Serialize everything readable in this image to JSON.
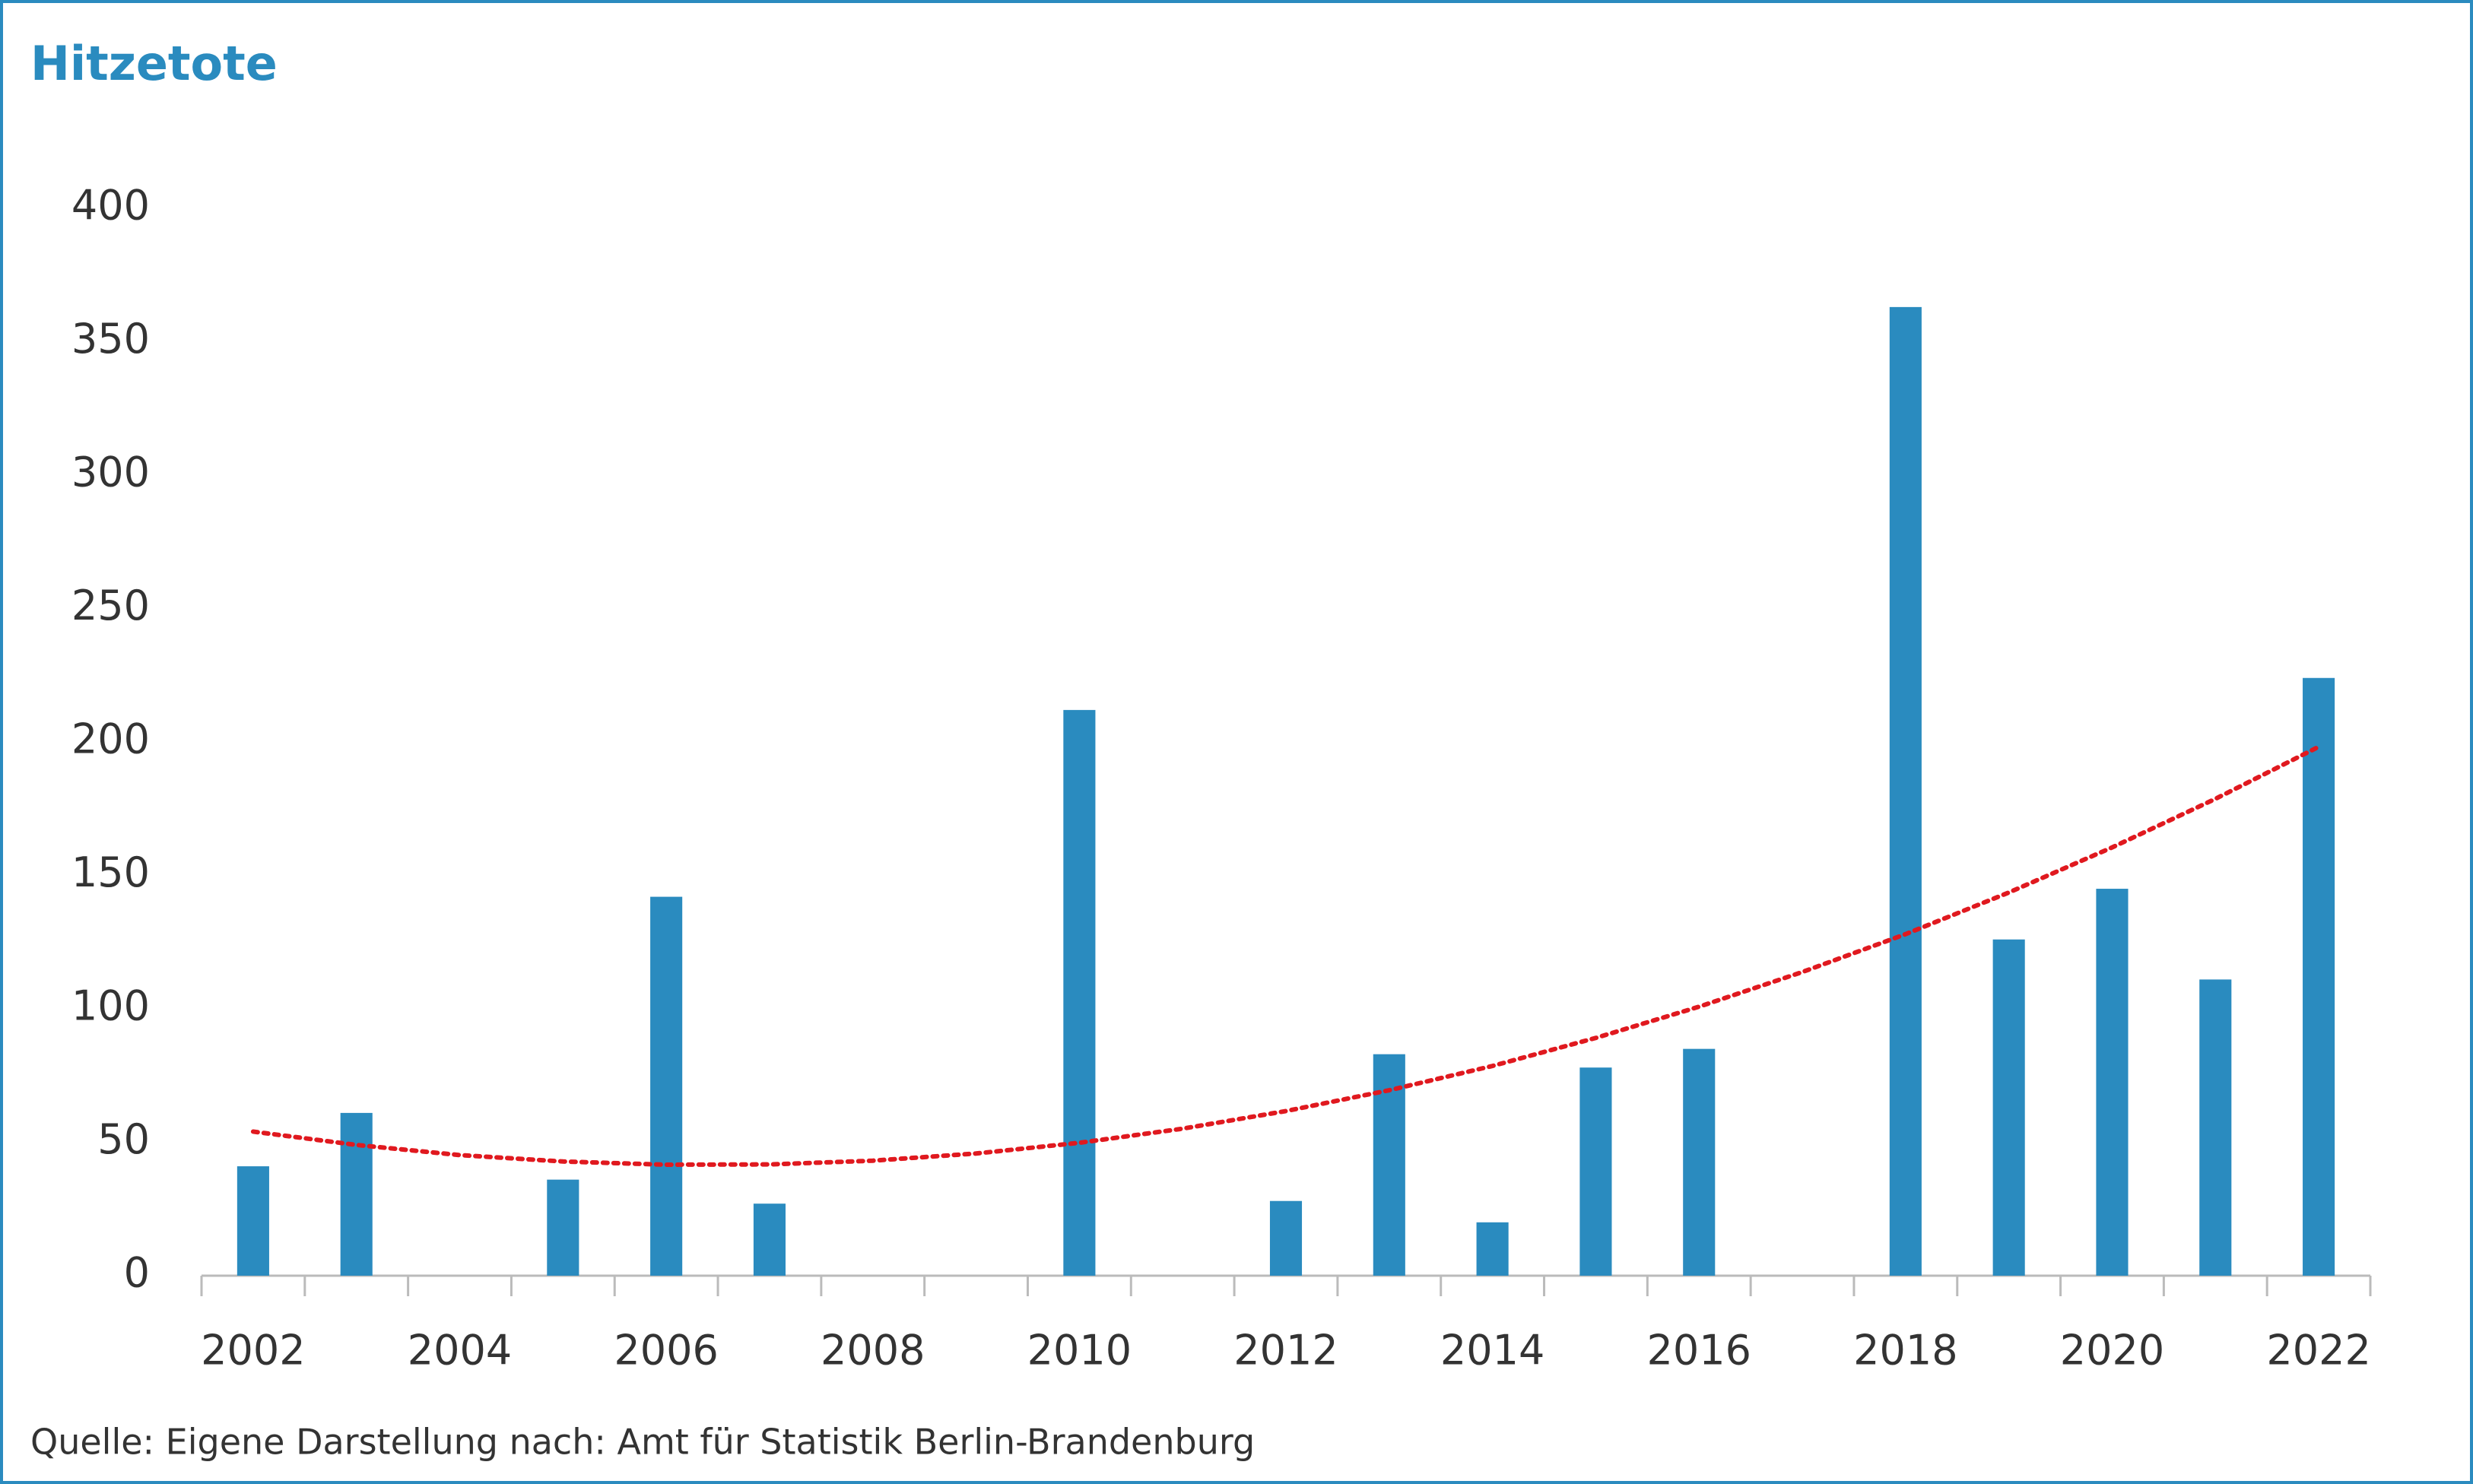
{
  "chart_data": {
    "type": "bar",
    "title": "Hitzetote",
    "source": "Quelle: Eigene Darstellung nach: Amt für Statistik Berlin-Brandenburg",
    "categories": [
      "2002",
      null,
      "2004",
      null,
      "2006",
      null,
      "2008",
      null,
      "2010",
      null,
      "2012",
      null,
      "2014",
      null,
      "2016",
      null,
      "2018",
      null,
      "2020",
      null,
      "2022"
    ],
    "values": [
      41,
      61,
      0,
      36,
      142,
      27,
      0,
      0,
      212,
      0,
      28,
      83,
      20,
      78,
      85,
      0,
      363,
      126,
      145,
      111,
      224
    ],
    "color": "#2a8bbf",
    "trendline": {
      "color": "#e0191f",
      "style": "dotted",
      "values": [
        54,
        49,
        45.2,
        42.8,
        41.6,
        41.7,
        43.1,
        45.8,
        49.8,
        55.1,
        61.7,
        69.5,
        78.6,
        89.1,
        100.8,
        113.8,
        128,
        143.6,
        160.5,
        178.7,
        198.2
      ]
    },
    "ylim": [
      0,
      400
    ],
    "yticks": [
      0,
      50,
      100,
      150,
      200,
      250,
      300,
      350,
      400
    ],
    "grid": false
  }
}
